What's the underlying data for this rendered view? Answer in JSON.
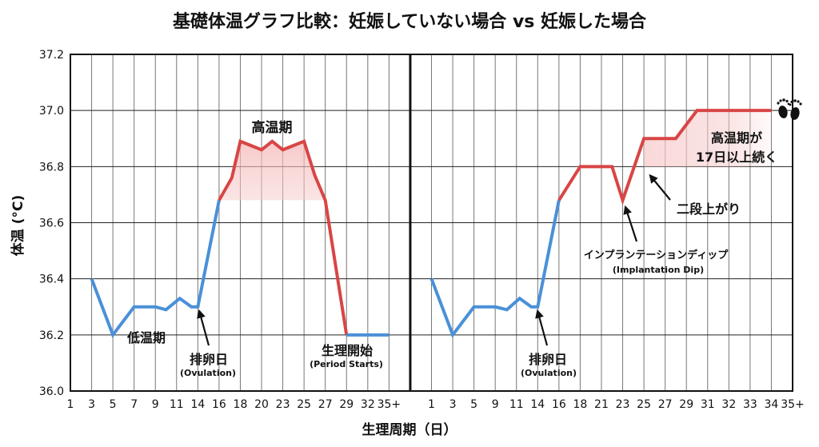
{
  "chart_data": {
    "type": "line",
    "title": "基礎体温グラフ比較：妊娠していない場合 vs 妊娠した場合",
    "xlabel": "生理周期（日）",
    "ylabel": "体温 (°C)",
    "ylim": [
      36.0,
      37.2
    ],
    "yticks": [
      "37.2",
      "37.0",
      "36.8",
      "36.6",
      "36.4",
      "36.2",
      "36.0"
    ],
    "grid": true,
    "colors": {
      "low_phase": "#4a90d9",
      "high_phase": "#d94545",
      "high_fill": "#f7c9c9"
    },
    "panels": [
      {
        "categories": [
          "1",
          "3",
          "5",
          "7",
          "9",
          "11",
          "14",
          "16",
          "18",
          "20",
          "23",
          "25",
          "27",
          "29",
          "32",
          "35+"
        ],
        "series": [
          {
            "phase": "low",
            "points": [
              [
                1,
                36.4
              ],
              [
                2,
                36.2
              ],
              [
                3,
                36.3
              ],
              [
                4,
                36.3
              ],
              [
                4.5,
                36.29
              ],
              [
                5.15,
                36.33
              ],
              [
                5.7,
                36.3
              ],
              [
                6,
                36.3
              ],
              [
                7,
                36.68
              ]
            ]
          },
          {
            "phase": "high",
            "points": [
              [
                7,
                36.68
              ],
              [
                7.6,
                36.76
              ],
              [
                8,
                36.89
              ],
              [
                9,
                36.86
              ],
              [
                9.5,
                36.89
              ],
              [
                10,
                36.86
              ],
              [
                11,
                36.89
              ],
              [
                11.5,
                36.77
              ],
              [
                12,
                36.68
              ],
              [
                13,
                36.2
              ]
            ]
          },
          {
            "phase": "low",
            "points": [
              [
                13,
                36.2
              ],
              [
                15,
                36.2
              ]
            ]
          }
        ],
        "fill": {
          "from": 7,
          "to": 12,
          "base": 36.68
        },
        "annotations": {
          "high_phase": "高温期",
          "low_phase": "低温期",
          "ovulation": "排卵日",
          "ovulation_en": "(Ovulation)",
          "period": "生理開始",
          "period_en": "(Period Starts)"
        }
      },
      {
        "categories": [
          "1",
          "3",
          "5",
          "9",
          "11",
          "14",
          "16",
          "18",
          "21",
          "23",
          "25",
          "27",
          "29",
          "31",
          "32",
          "33",
          "34",
          "35+"
        ],
        "series": [
          {
            "phase": "low",
            "points": [
              [
                0,
                36.4
              ],
              [
                1,
                36.2
              ],
              [
                2,
                36.3
              ],
              [
                3,
                36.3
              ],
              [
                3.55,
                36.29
              ],
              [
                4.15,
                36.33
              ],
              [
                4.7,
                36.3
              ],
              [
                5,
                36.3
              ],
              [
                6,
                36.68
              ]
            ]
          },
          {
            "phase": "high",
            "points": [
              [
                6,
                36.68
              ],
              [
                7,
                36.8
              ],
              [
                8.5,
                36.8
              ],
              [
                9,
                36.68
              ],
              [
                10,
                36.9
              ],
              [
                11.5,
                36.9
              ],
              [
                12.5,
                37.0
              ],
              [
                16,
                37.0
              ]
            ]
          }
        ],
        "fill": {
          "from": 10,
          "to": 16,
          "base": 36.8
        },
        "annotations": {
          "ovulation": "排卵日",
          "ovulation_en": "(Ovulation)",
          "dip": "インプランテーションディップ",
          "dip_en": "(Implantation Dip)",
          "two_step": "二段上がり",
          "high_line1": "高温期が",
          "high_line2": "17日以上続く"
        },
        "icon": "baby-footprints-icon"
      }
    ]
  }
}
